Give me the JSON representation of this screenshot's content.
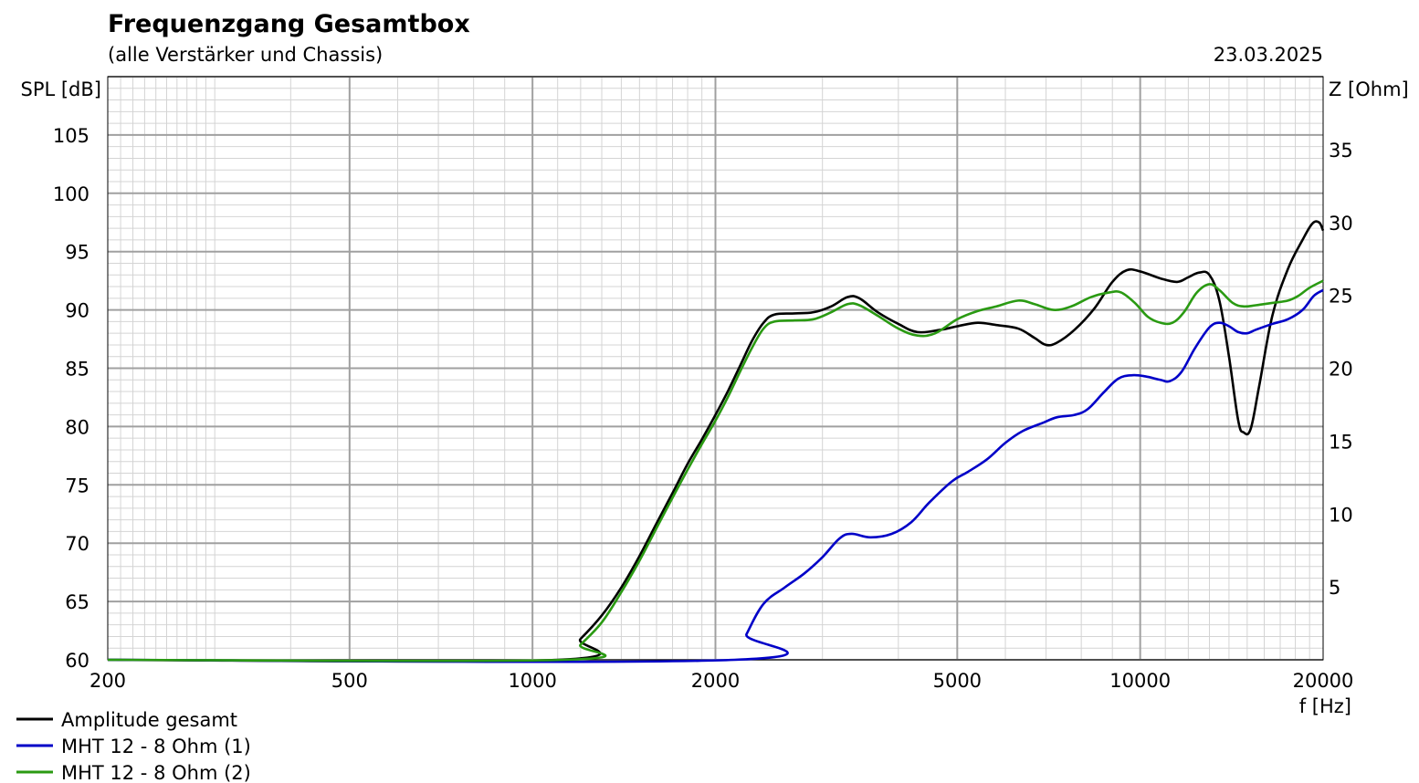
{
  "chart_data": {
    "type": "line",
    "title": "Frequenzgang Gesamtbox",
    "subtitle": "(alle Verstärker und Chassis)",
    "date": "23.03.2025",
    "xlabel": "f [Hz]",
    "ylabel": "SPL [dB]",
    "y2label": "Z [Ohm]",
    "x_scale": "log",
    "xlim": [
      200,
      20000
    ],
    "ylim": [
      60,
      110
    ],
    "y2lim": [
      0,
      40
    ],
    "x_ticks": [
      "200",
      "500",
      "1000",
      "2000",
      "5000",
      "10000",
      "20000"
    ],
    "y_ticks": [
      "60",
      "65",
      "70",
      "75",
      "80",
      "85",
      "90",
      "95",
      "100",
      "105"
    ],
    "y2_ticks": [
      "5",
      "10",
      "15",
      "20",
      "25",
      "30",
      "35"
    ],
    "grid": true,
    "legend_position": "bottom-left",
    "colors": {
      "grid_major": "#a0a0a0",
      "grid_minor": "#d4d4d4",
      "axis": "#000000"
    },
    "series": [
      {
        "name": "Amplitude gesamt",
        "color": "#000000",
        "points": [
          [
            200,
            60
          ],
          [
            1100,
            60
          ],
          [
            1200,
            61.8
          ],
          [
            1300,
            63.8
          ],
          [
            1400,
            66.2
          ],
          [
            1500,
            68.9
          ],
          [
            1600,
            71.7
          ],
          [
            1700,
            74.3
          ],
          [
            1800,
            76.8
          ],
          [
            1900,
            78.9
          ],
          [
            2000,
            81
          ],
          [
            2100,
            83.1
          ],
          [
            2200,
            85.3
          ],
          [
            2300,
            87.4
          ],
          [
            2400,
            88.9
          ],
          [
            2500,
            89.6
          ],
          [
            2700,
            89.7
          ],
          [
            2900,
            89.8
          ],
          [
            3100,
            90.3
          ],
          [
            3300,
            91.1
          ],
          [
            3450,
            91
          ],
          [
            3700,
            89.8
          ],
          [
            4000,
            88.8
          ],
          [
            4300,
            88.1
          ],
          [
            4700,
            88.3
          ],
          [
            5000,
            88.6
          ],
          [
            5400,
            88.9
          ],
          [
            5800,
            88.7
          ],
          [
            6300,
            88.4
          ],
          [
            6700,
            87.6
          ],
          [
            7000,
            87
          ],
          [
            7300,
            87.2
          ],
          [
            7800,
            88.3
          ],
          [
            8400,
            90.1
          ],
          [
            9000,
            92.4
          ],
          [
            9500,
            93.4
          ],
          [
            10000,
            93.3
          ],
          [
            10800,
            92.7
          ],
          [
            11500,
            92.4
          ],
          [
            12000,
            92.8
          ],
          [
            12500,
            93.2
          ],
          [
            13000,
            93
          ],
          [
            13500,
            90.8
          ],
          [
            14000,
            86
          ],
          [
            14500,
            80.5
          ],
          [
            14800,
            79.5
          ],
          [
            15200,
            79.8
          ],
          [
            15700,
            83.5
          ],
          [
            16500,
            89.5
          ],
          [
            17500,
            93.5
          ],
          [
            18500,
            96
          ],
          [
            19200,
            97.4
          ],
          [
            19700,
            97.5
          ],
          [
            20000,
            96.8
          ]
        ]
      },
      {
        "name": "MHT 12 - 8 Ohm (1)",
        "color": "#0000c8",
        "points": [
          [
            200,
            60
          ],
          [
            2150,
            60
          ],
          [
            2250,
            62.2
          ],
          [
            2400,
            64.8
          ],
          [
            2600,
            66.2
          ],
          [
            2800,
            67.4
          ],
          [
            3000,
            68.8
          ],
          [
            3200,
            70.4
          ],
          [
            3350,
            70.8
          ],
          [
            3600,
            70.5
          ],
          [
            3900,
            70.8
          ],
          [
            4200,
            71.8
          ],
          [
            4500,
            73.5
          ],
          [
            4900,
            75.3
          ],
          [
            5200,
            76.1
          ],
          [
            5600,
            77.2
          ],
          [
            6000,
            78.6
          ],
          [
            6400,
            79.6
          ],
          [
            6900,
            80.3
          ],
          [
            7300,
            80.8
          ],
          [
            7800,
            81
          ],
          [
            8200,
            81.5
          ],
          [
            8700,
            82.9
          ],
          [
            9200,
            84.1
          ],
          [
            9700,
            84.4
          ],
          [
            10200,
            84.3
          ],
          [
            10800,
            84
          ],
          [
            11200,
            83.9
          ],
          [
            11700,
            84.7
          ],
          [
            12300,
            86.7
          ],
          [
            13000,
            88.5
          ],
          [
            13500,
            88.9
          ],
          [
            14000,
            88.6
          ],
          [
            14500,
            88.1
          ],
          [
            15000,
            88
          ],
          [
            15500,
            88.3
          ],
          [
            16500,
            88.8
          ],
          [
            17500,
            89.2
          ],
          [
            18500,
            90
          ],
          [
            19300,
            91.2
          ],
          [
            20000,
            91.7
          ]
        ]
      },
      {
        "name": "MHT 12 - 8 Ohm (2)",
        "color": "#2a9a12",
        "points": [
          [
            200,
            60
          ],
          [
            1130,
            60
          ],
          [
            1200,
            61.3
          ],
          [
            1300,
            63.2
          ],
          [
            1400,
            65.8
          ],
          [
            1500,
            68.5
          ],
          [
            1600,
            71.3
          ],
          [
            1700,
            73.9
          ],
          [
            1800,
            76.3
          ],
          [
            1900,
            78.5
          ],
          [
            2000,
            80.5
          ],
          [
            2100,
            82.6
          ],
          [
            2200,
            84.8
          ],
          [
            2300,
            86.8
          ],
          [
            2400,
            88.4
          ],
          [
            2500,
            89
          ],
          [
            2700,
            89.1
          ],
          [
            2900,
            89.2
          ],
          [
            3100,
            89.8
          ],
          [
            3300,
            90.5
          ],
          [
            3450,
            90.4
          ],
          [
            3700,
            89.5
          ],
          [
            4000,
            88.4
          ],
          [
            4300,
            87.8
          ],
          [
            4600,
            88
          ],
          [
            5000,
            89.2
          ],
          [
            5400,
            89.9
          ],
          [
            5800,
            90.3
          ],
          [
            6300,
            90.8
          ],
          [
            6700,
            90.5
          ],
          [
            7200,
            90
          ],
          [
            7700,
            90.3
          ],
          [
            8300,
            91.1
          ],
          [
            8900,
            91.5
          ],
          [
            9300,
            91.5
          ],
          [
            9800,
            90.6
          ],
          [
            10300,
            89.4
          ],
          [
            10800,
            88.9
          ],
          [
            11300,
            88.9
          ],
          [
            11800,
            89.8
          ],
          [
            12400,
            91.5
          ],
          [
            13000,
            92.2
          ],
          [
            13500,
            91.7
          ],
          [
            14200,
            90.6
          ],
          [
            14800,
            90.3
          ],
          [
            15500,
            90.4
          ],
          [
            16500,
            90.6
          ],
          [
            17500,
            90.8
          ],
          [
            18200,
            91.2
          ],
          [
            19000,
            91.9
          ],
          [
            20000,
            92.5
          ]
        ]
      }
    ]
  }
}
